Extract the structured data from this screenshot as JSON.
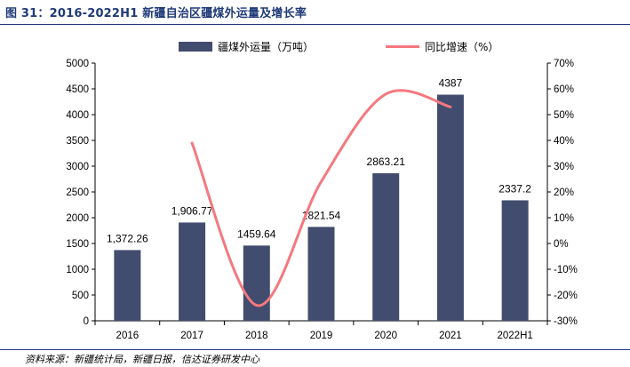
{
  "header": {
    "title": "图 31：2016-2022H1 新疆自治区疆煤外运量及增长率"
  },
  "footer": {
    "source": "资料来源：新疆统计局，新疆日报，信达证券研发中心"
  },
  "colors": {
    "bar": "#424c6e",
    "line": "#f4787e",
    "title": "#1f3a78"
  },
  "chart_data": {
    "type": "bar",
    "title": "2016-2022H1 新疆自治区疆煤外运量及增长率",
    "categories": [
      "2016",
      "2017",
      "2018",
      "2019",
      "2020",
      "2021",
      "2022H1"
    ],
    "series": [
      {
        "name": "疆煤外运量（万吨）",
        "type": "bar",
        "axis": "left",
        "values": [
          1372.26,
          1906.77,
          1459.64,
          1821.54,
          2863.21,
          4387,
          2337.2
        ],
        "labels": [
          "1,372.26",
          "1,906.77",
          "1459.64",
          "1821.54",
          "2863.21",
          "4387",
          "2337.2"
        ]
      },
      {
        "name": "同比增速（%）",
        "type": "line",
        "axis": "right",
        "smooth": true,
        "values": [
          null,
          39,
          -24,
          24,
          58,
          53,
          null
        ]
      }
    ],
    "ylim_left": [
      0,
      5000
    ],
    "yticks_left": [
      0,
      500,
      1000,
      1500,
      2000,
      2500,
      3000,
      3500,
      4000,
      4500,
      5000
    ],
    "ylim_right": [
      -30,
      70
    ],
    "yticks_right": [
      "-30%",
      "-20%",
      "-10%",
      "0%",
      "10%",
      "20%",
      "30%",
      "40%",
      "50%",
      "60%",
      "70%"
    ],
    "legend": [
      "疆煤外运量（万吨）",
      "同比增速（%）"
    ],
    "legend_position": "top-center",
    "grid": false
  }
}
